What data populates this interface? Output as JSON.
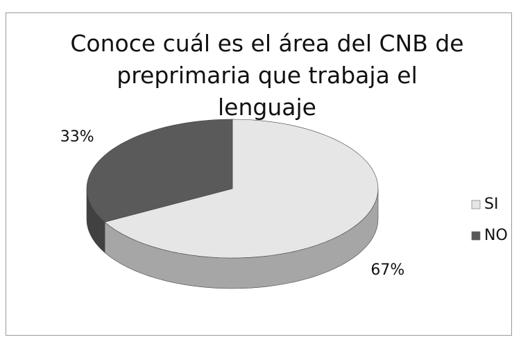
{
  "chart_data": {
    "type": "pie",
    "title": "Conoce cuál es el área del CNB de preprimaria que trabaja el lenguaje",
    "categories": [
      "SI",
      "NO"
    ],
    "values": [
      67,
      33
    ],
    "value_labels": [
      "67%",
      "33%"
    ],
    "colors": [
      "#e6e6e6",
      "#5a5a5a"
    ],
    "legend": "right"
  }
}
